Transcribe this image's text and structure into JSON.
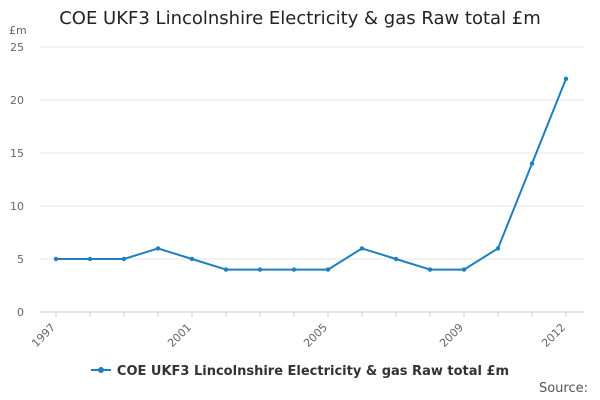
{
  "chart_data": {
    "type": "line",
    "title": "COE UKF3 Lincolnshire Electricity & gas Raw total £m",
    "ylabel": "£m",
    "xlabel": "",
    "x": [
      1997,
      1998,
      1999,
      2000,
      2001,
      2002,
      2003,
      2004,
      2005,
      2006,
      2007,
      2008,
      2009,
      2010,
      2011,
      2012
    ],
    "x_tick_labels": [
      "1997",
      "2001",
      "2005",
      "2009",
      "2012"
    ],
    "y_ticks": [
      0,
      5,
      10,
      15,
      20,
      25
    ],
    "ylim": [
      0,
      25
    ],
    "grid": true,
    "legend_position": "bottom",
    "series": [
      {
        "name": "COE UKF3 Lincolnshire Electricity & gas Raw total £m",
        "color": "#1f7fbf",
        "values": [
          5,
          5,
          5,
          6,
          5,
          4,
          4,
          4,
          4,
          6,
          5,
          4,
          4,
          6,
          14,
          22
        ]
      }
    ]
  },
  "source_label": "Source:"
}
